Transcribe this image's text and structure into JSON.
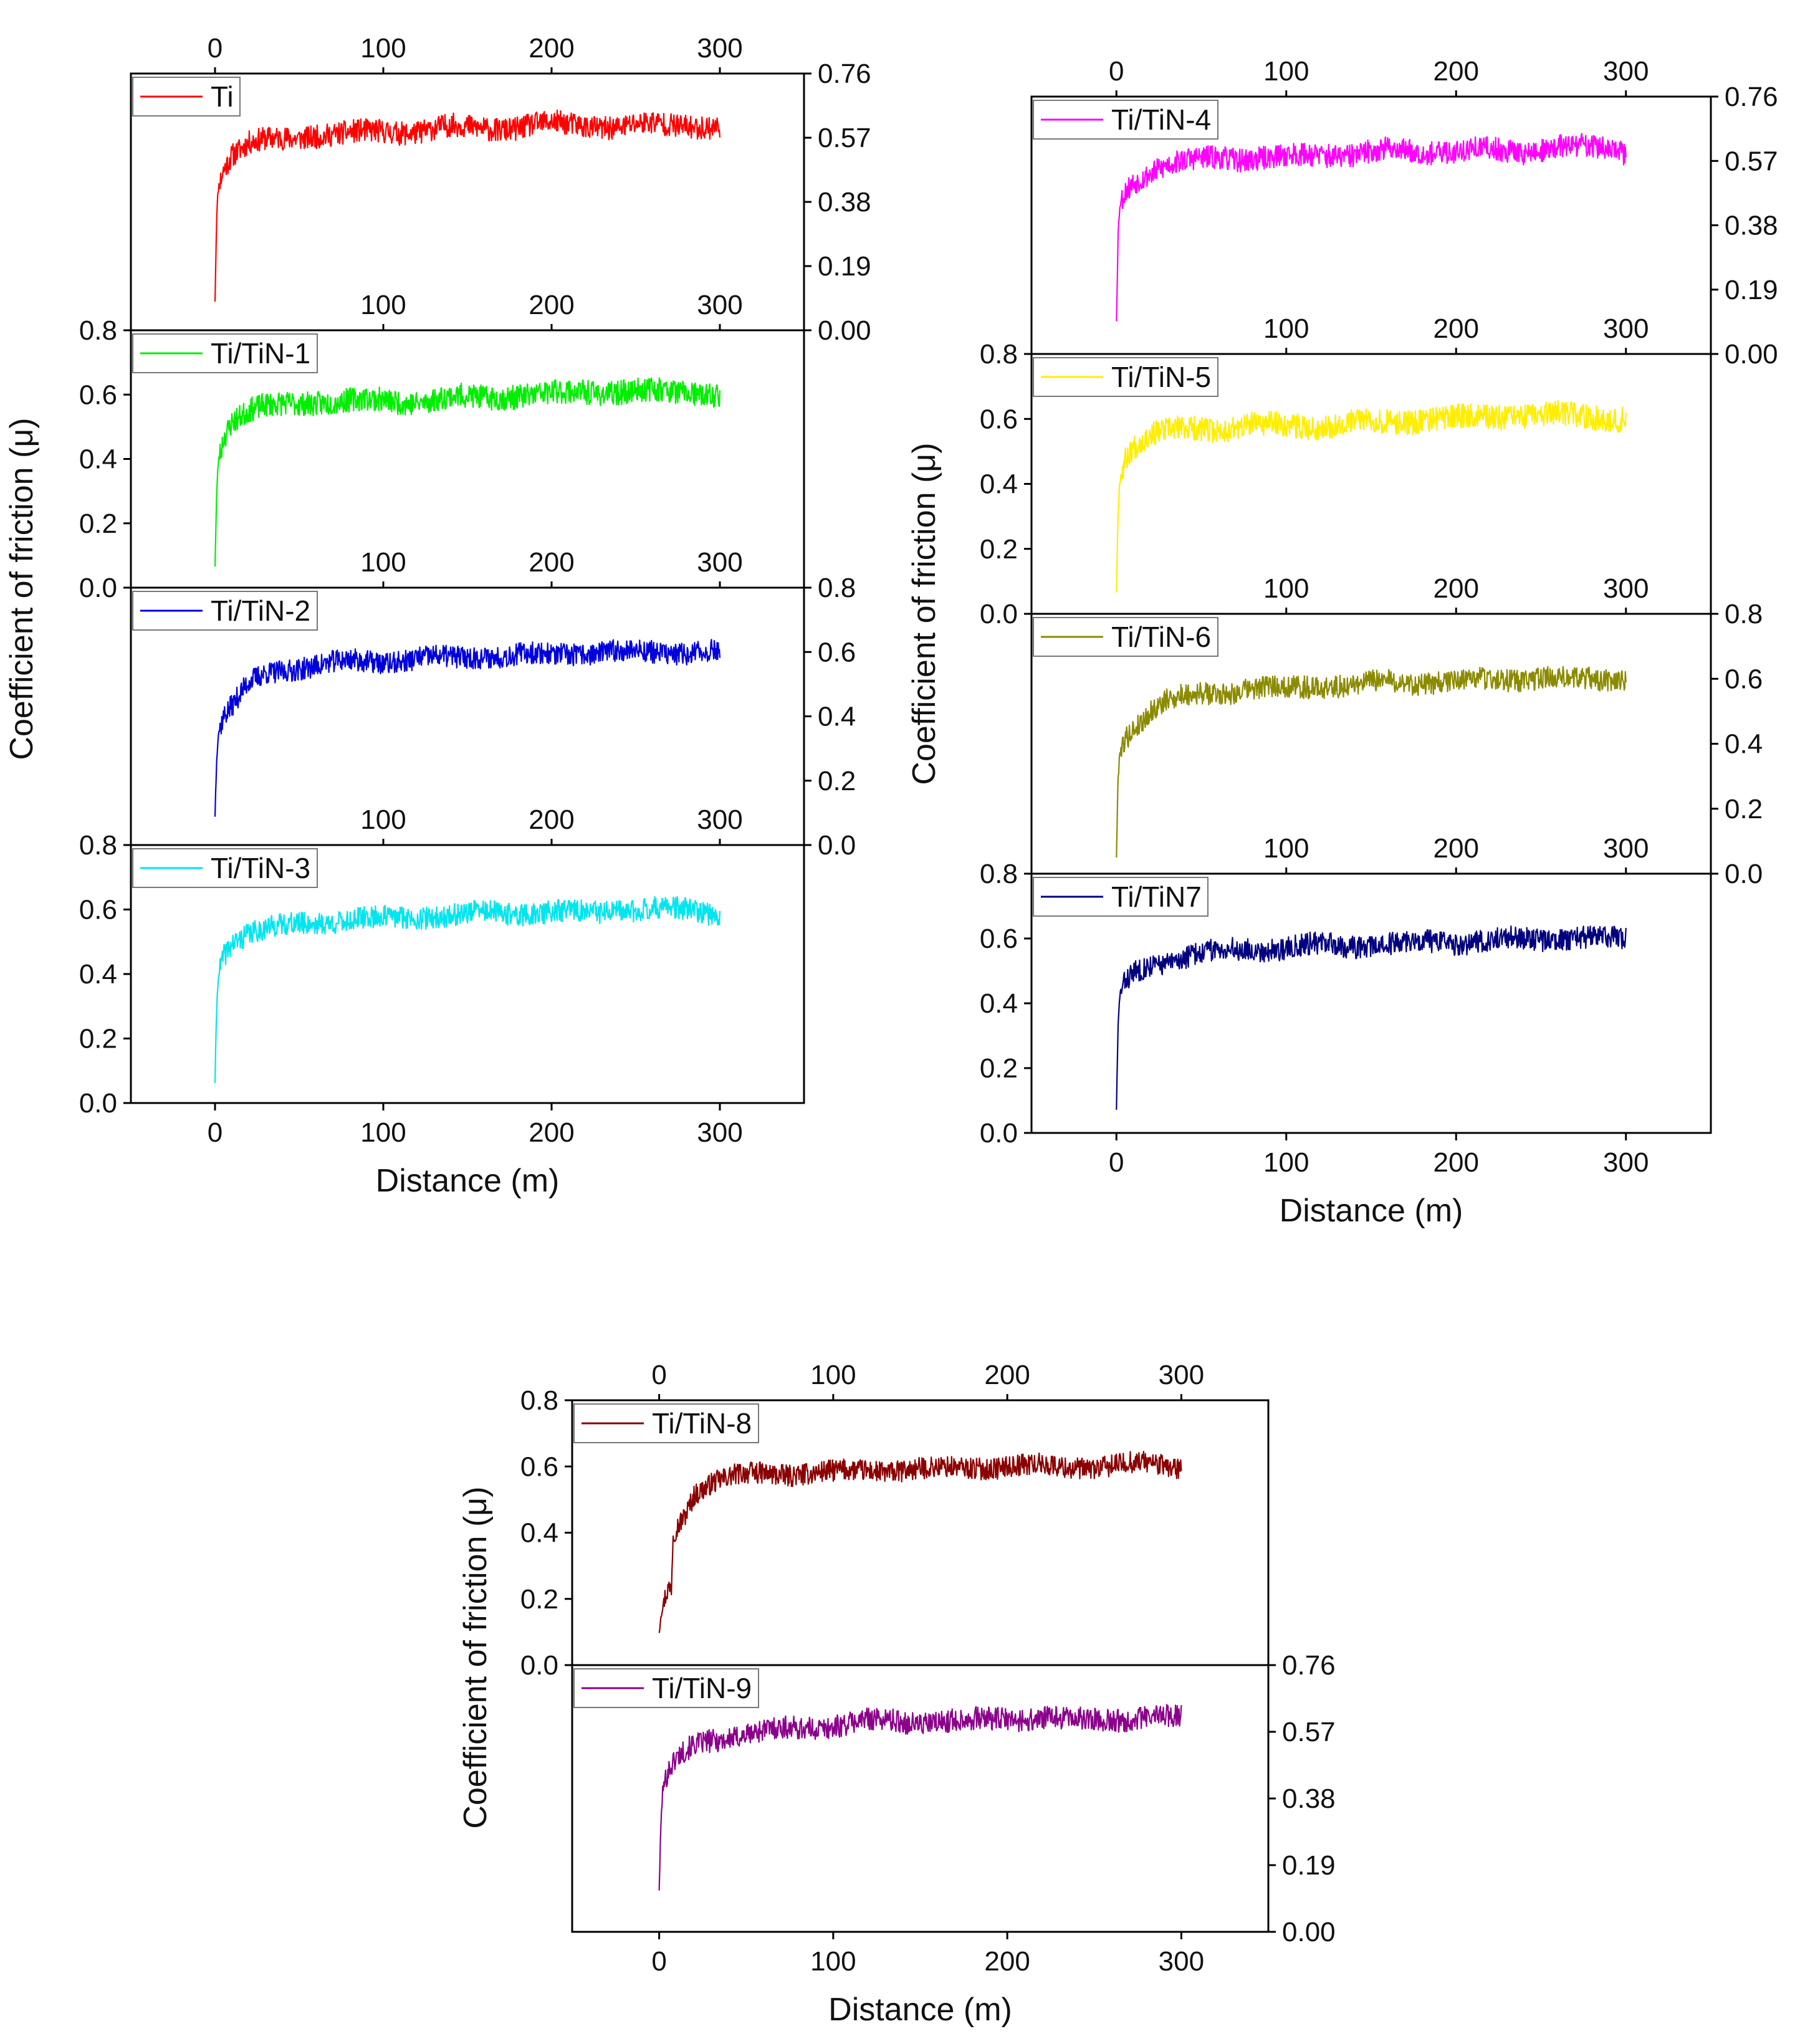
{
  "chart_data": {
    "type": "line",
    "x_label": "Distance (m)",
    "y_label": "Coefficient of friction (μ)",
    "x_range": [
      0,
      300
    ],
    "x_ticks": [
      "0",
      "100",
      "200",
      "300"
    ],
    "groups": [
      {
        "name": "left-stack",
        "panels": [
          {
            "id": "ti",
            "legend": "Ti",
            "color": "#ff0000",
            "y_side": "right",
            "y_range": [
              0,
              0.76
            ],
            "y_ticks": [
              "0.00",
              "0.19",
              "0.38",
              "0.57",
              "0.76"
            ],
            "top_x_ticks": [
              "0",
              "100",
              "200",
              "300"
            ],
            "x_profile": [
              0,
              1,
              2,
              5,
              10,
              20,
              30,
              45,
              60,
              80,
              100,
              120,
              140,
              160,
              180,
              200,
              220,
              240,
              260,
              280,
              300
            ],
            "y_profile": [
              0.1,
              0.35,
              0.43,
              0.48,
              0.52,
              0.55,
              0.56,
              0.57,
              0.58,
              0.58,
              0.59,
              0.59,
              0.6,
              0.6,
              0.6,
              0.61,
              0.61,
              0.6,
              0.61,
              0.61,
              0.6
            ],
            "noise": 0.035,
            "seed": 11
          },
          {
            "id": "ti-tin-1",
            "legend": "Ti/TiN-1",
            "color": "#00ee00",
            "y_side": "left",
            "y_range": [
              0,
              0.8
            ],
            "y_ticks": [
              "0.0",
              "0.2",
              "0.4",
              "0.6",
              "0.8"
            ],
            "top_x_ticks": [
              "100",
              "200",
              "300"
            ],
            "x_profile": [
              0,
              1,
              2,
              5,
              10,
              20,
              30,
              45,
              60,
              80,
              100,
              120,
              140,
              160,
              180,
              200,
              220,
              240,
              260,
              280,
              300
            ],
            "y_profile": [
              0.08,
              0.3,
              0.4,
              0.47,
              0.52,
              0.55,
              0.56,
              0.57,
              0.58,
              0.58,
              0.58,
              0.58,
              0.59,
              0.59,
              0.6,
              0.6,
              0.61,
              0.61,
              0.61,
              0.61,
              0.6
            ],
            "noise": 0.038,
            "seed": 23
          },
          {
            "id": "ti-tin-2",
            "legend": "Ti/TiN-2",
            "color": "#0000dd",
            "y_side": "right",
            "y_range": [
              0,
              0.8
            ],
            "y_ticks": [
              "0.0",
              "0.2",
              "0.4",
              "0.6",
              "0.8"
            ],
            "top_x_ticks": [
              "100",
              "200",
              "300"
            ],
            "x_profile": [
              0,
              1,
              2,
              5,
              10,
              20,
              30,
              45,
              60,
              80,
              100,
              120,
              140,
              160,
              180,
              200,
              220,
              240,
              260,
              280,
              300
            ],
            "y_profile": [
              0.1,
              0.28,
              0.35,
              0.4,
              0.43,
              0.5,
              0.53,
              0.55,
              0.56,
              0.57,
              0.57,
              0.58,
              0.58,
              0.59,
              0.59,
              0.59,
              0.6,
              0.6,
              0.6,
              0.6,
              0.6
            ],
            "noise": 0.035,
            "seed": 37
          },
          {
            "id": "ti-tin-3",
            "legend": "Ti/TiN-3",
            "color": "#00e5ee",
            "y_side": "left",
            "y_range": [
              0,
              0.8
            ],
            "y_ticks": [
              "0.0",
              "0.2",
              "0.4",
              "0.6",
              "0.8"
            ],
            "top_x_ticks": [
              "100",
              "200",
              "300"
            ],
            "x_profile": [
              0,
              1,
              2,
              5,
              10,
              20,
              30,
              45,
              60,
              80,
              100,
              120,
              140,
              160,
              180,
              200,
              220,
              240,
              260,
              280,
              300
            ],
            "y_profile": [
              0.07,
              0.3,
              0.4,
              0.46,
              0.5,
              0.53,
              0.54,
              0.55,
              0.56,
              0.57,
              0.57,
              0.58,
              0.58,
              0.59,
              0.59,
              0.59,
              0.59,
              0.6,
              0.6,
              0.6,
              0.59
            ],
            "noise": 0.035,
            "seed": 41
          }
        ]
      },
      {
        "name": "right-stack",
        "panels": [
          {
            "id": "ti-tin-4",
            "legend": "Ti/TiN-4",
            "color": "#ff00ff",
            "y_side": "right",
            "y_range": [
              0,
              0.76
            ],
            "y_ticks": [
              "0.00",
              "0.19",
              "0.38",
              "0.57",
              "0.76"
            ],
            "top_x_ticks": [
              "0",
              "100",
              "200",
              "300"
            ],
            "x_profile": [
              0,
              1,
              2,
              5,
              10,
              20,
              30,
              45,
              60,
              80,
              100,
              120,
              140,
              160,
              180,
              200,
              220,
              240,
              260,
              280,
              300
            ],
            "y_profile": [
              0.1,
              0.35,
              0.44,
              0.48,
              0.51,
              0.54,
              0.56,
              0.57,
              0.58,
              0.58,
              0.58,
              0.59,
              0.59,
              0.6,
              0.6,
              0.6,
              0.6,
              0.6,
              0.61,
              0.61,
              0.6
            ],
            "noise": 0.035,
            "seed": 53
          },
          {
            "id": "ti-tin-5",
            "legend": "Ti/TiN-5",
            "color": "#ffee00",
            "y_side": "left",
            "y_range": [
              0,
              0.8
            ],
            "y_ticks": [
              "0.0",
              "0.2",
              "0.4",
              "0.6",
              "0.8"
            ],
            "top_x_ticks": [
              "100",
              "200",
              "300"
            ],
            "x_profile": [
              0,
              1,
              2,
              5,
              10,
              20,
              30,
              45,
              60,
              80,
              100,
              120,
              140,
              160,
              180,
              200,
              220,
              240,
              260,
              280,
              300
            ],
            "y_profile": [
              0.08,
              0.32,
              0.42,
              0.48,
              0.52,
              0.55,
              0.56,
              0.57,
              0.57,
              0.58,
              0.58,
              0.58,
              0.59,
              0.59,
              0.6,
              0.6,
              0.61,
              0.61,
              0.61,
              0.61,
              0.6
            ],
            "noise": 0.038,
            "seed": 67
          },
          {
            "id": "ti-tin-6",
            "legend": "Ti/TiN-6",
            "color": "#8b8b00",
            "y_side": "right",
            "y_range": [
              0,
              0.8
            ],
            "y_ticks": [
              "0.0",
              "0.2",
              "0.4",
              "0.6",
              "0.8"
            ],
            "top_x_ticks": [
              "100",
              "200",
              "300"
            ],
            "x_profile": [
              0,
              1,
              2,
              5,
              10,
              20,
              30,
              45,
              60,
              80,
              100,
              120,
              140,
              160,
              180,
              200,
              220,
              240,
              260,
              280,
              300
            ],
            "y_profile": [
              0.06,
              0.3,
              0.38,
              0.42,
              0.45,
              0.5,
              0.53,
              0.55,
              0.56,
              0.57,
              0.57,
              0.58,
              0.58,
              0.59,
              0.59,
              0.59,
              0.6,
              0.6,
              0.6,
              0.6,
              0.6
            ],
            "noise": 0.035,
            "seed": 79
          },
          {
            "id": "ti-tin-7",
            "legend": "Ti/TiN7",
            "color": "#000080",
            "y_side": "left",
            "y_range": [
              0,
              0.8
            ],
            "y_ticks": [
              "0.0",
              "0.2",
              "0.4",
              "0.6",
              "0.8"
            ],
            "top_x_ticks": [
              "100",
              "200",
              "300"
            ],
            "x_profile": [
              0,
              1,
              2,
              5,
              10,
              20,
              30,
              45,
              60,
              80,
              100,
              120,
              140,
              160,
              180,
              200,
              220,
              240,
              260,
              280,
              300
            ],
            "y_profile": [
              0.07,
              0.32,
              0.42,
              0.46,
              0.49,
              0.52,
              0.53,
              0.55,
              0.56,
              0.57,
              0.57,
              0.58,
              0.58,
              0.58,
              0.59,
              0.59,
              0.59,
              0.6,
              0.6,
              0.6,
              0.6
            ],
            "noise": 0.035,
            "seed": 83
          }
        ]
      },
      {
        "name": "bottom-stack",
        "panels": [
          {
            "id": "ti-tin-8",
            "legend": "Ti/TiN-8",
            "color": "#8b0000",
            "y_side": "left",
            "y_range": [
              0,
              0.8
            ],
            "y_ticks": [
              "0.0",
              "0.2",
              "0.4",
              "0.6",
              "0.8"
            ],
            "top_x_ticks": [
              "0",
              "100",
              "200",
              "300"
            ],
            "x_profile": [
              0,
              1,
              3,
              5,
              7,
              8,
              10,
              15,
              20,
              30,
              45,
              60,
              80,
              100,
              120,
              140,
              160,
              180,
              200,
              220,
              240,
              260,
              280,
              300
            ],
            "y_profile": [
              0.1,
              0.15,
              0.2,
              0.23,
              0.24,
              0.4,
              0.42,
              0.46,
              0.52,
              0.55,
              0.57,
              0.58,
              0.58,
              0.58,
              0.59,
              0.59,
              0.59,
              0.6,
              0.6,
              0.6,
              0.6,
              0.6,
              0.61,
              0.6
            ],
            "noise": 0.033,
            "seed": 97
          },
          {
            "id": "ti-tin-9",
            "legend": "Ti/TiN-9",
            "color": "#8b008b",
            "y_side": "right",
            "y_range": [
              0,
              0.76
            ],
            "y_ticks": [
              "0.00",
              "0.19",
              "0.38",
              "0.57",
              "0.76"
            ],
            "top_x_ticks": [],
            "x_profile": [
              0,
              1,
              2,
              5,
              10,
              20,
              30,
              45,
              60,
              80,
              100,
              120,
              140,
              160,
              180,
              200,
              220,
              240,
              260,
              280,
              300
            ],
            "y_profile": [
              0.12,
              0.3,
              0.4,
              0.45,
              0.49,
              0.53,
              0.55,
              0.56,
              0.57,
              0.58,
              0.59,
              0.6,
              0.6,
              0.6,
              0.6,
              0.61,
              0.61,
              0.6,
              0.61,
              0.61,
              0.61
            ],
            "noise": 0.033,
            "seed": 101
          }
        ]
      }
    ]
  }
}
